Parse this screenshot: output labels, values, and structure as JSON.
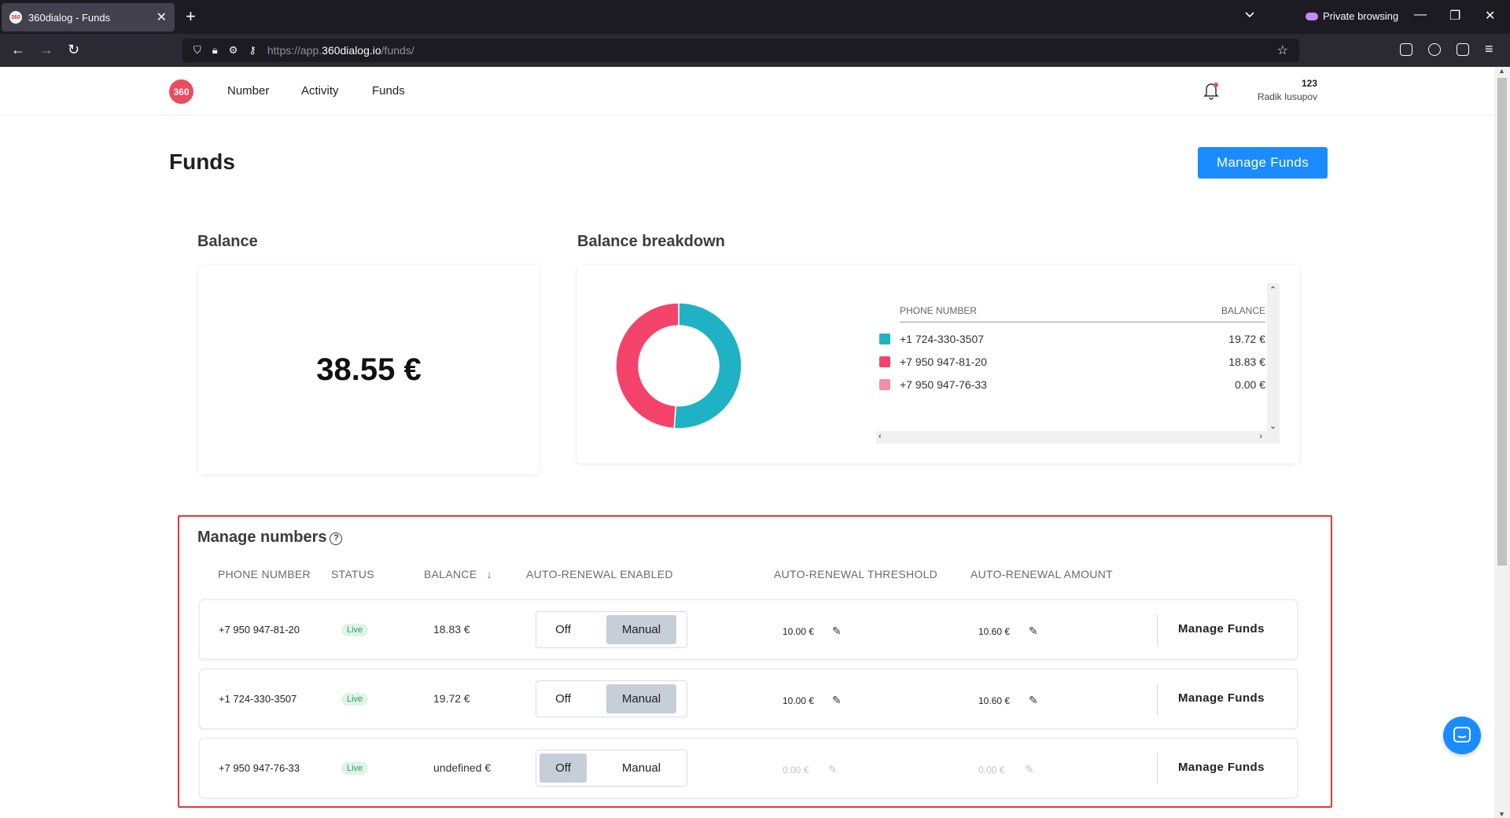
{
  "browser": {
    "tab_title": "360dialog - Funds",
    "tab_favicon_text": "360",
    "url_prefix": "https://app.",
    "url_domain": "360dialog.io",
    "url_path": "/funds/",
    "private_label": "Private browsing"
  },
  "header": {
    "logo_text": "360",
    "nav": [
      "Number",
      "Activity",
      "Funds"
    ],
    "user_id": "123",
    "user_name": "Radik Iusupov"
  },
  "page": {
    "title": "Funds",
    "manage_funds_label": "Manage Funds"
  },
  "balance": {
    "title": "Balance",
    "amount": "38.55 €"
  },
  "breakdown": {
    "title": "Balance breakdown",
    "col_phone": "PHONE NUMBER",
    "col_balance": "BALANCE",
    "items": [
      {
        "phone": "+1 724-330-3507",
        "balance": "19.72 €",
        "color": "#1fb2c4"
      },
      {
        "phone": "+7 950 947-81-20",
        "balance": "18.83 €",
        "color": "#f4436a"
      },
      {
        "phone": "+7 950 947-76-33",
        "balance": "0.00 €",
        "color": "#f78ca2"
      }
    ]
  },
  "chart_data": {
    "type": "pie",
    "categories": [
      "+1 724-330-3507",
      "+7 950 947-81-20",
      "+7 950 947-76-33"
    ],
    "values": [
      19.72,
      18.83,
      0.0
    ],
    "colors": [
      "#1fb2c4",
      "#f4436a",
      "#f78ca2"
    ],
    "donut": true
  },
  "manage": {
    "title": "Manage numbers",
    "columns": [
      "PHONE NUMBER",
      "STATUS",
      "BALANCE",
      "AUTO-RENEWAL ENABLED",
      "AUTO-RENEWAL THRESHOLD",
      "AUTO-RENEWAL AMOUNT"
    ],
    "sort_icon": "arrow-down-icon",
    "toggle_off_label": "Off",
    "toggle_manual_label": "Manual",
    "row_action_label": "Manage Funds",
    "rows": [
      {
        "phone": "+7 950 947-81-20",
        "status": "Live",
        "balance": "18.83 €",
        "mode": "Manual",
        "threshold": "10.00 €",
        "amount": "10.60 €"
      },
      {
        "phone": "+1 724-330-3507",
        "status": "Live",
        "balance": "19.72 €",
        "mode": "Manual",
        "threshold": "10.00 €",
        "amount": "10.60 €"
      },
      {
        "phone": "+7 950 947-76-33",
        "status": "Live",
        "balance": "undefined €",
        "mode": "Off",
        "threshold": "0.00 €",
        "amount": "0.00 €"
      }
    ]
  }
}
